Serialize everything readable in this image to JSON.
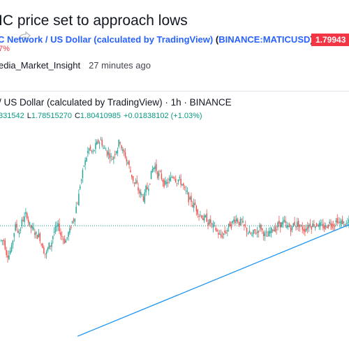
{
  "article": {
    "headline": "IC price set to approach lows",
    "symbol_name": "C Network / US Dollar (calculated by TradingView)",
    "symbol_code": "BINANCE:MATICUSD",
    "price": "1.79943",
    "change": "7%",
    "author": "edia_Market_Insight",
    "published": "27 minutes ago",
    "share_icon": "share-icon"
  },
  "chart": {
    "title": "/ US Dollar (calculated by TradingView) · 1h · BINANCE",
    "ohlc": {
      "open_partial": "331542",
      "low_label": "L",
      "low": "1.78515270",
      "close_label": "C",
      "close": "1.80410985",
      "change": "+0.01838102 (+1.03%)"
    },
    "colors": {
      "up": "#26a69a",
      "down": "#ef5350",
      "trendline": "#2196f3",
      "priceline": "#089981"
    }
  },
  "chart_data": {
    "type": "candlestick",
    "interval": "1h",
    "exchange": "BINANCE",
    "last_close": 1.80410985,
    "close_series": [
      1.77,
      1.74,
      1.75,
      1.8,
      1.79,
      1.82,
      1.83,
      1.8,
      1.79,
      1.78,
      1.76,
      1.74,
      1.76,
      1.79,
      1.8,
      1.78,
      1.77,
      1.79,
      1.82,
      1.86,
      1.91,
      1.95,
      1.98,
      1.97,
      1.99,
      2.0,
      1.98,
      1.97,
      1.96,
      1.98,
      2.0,
      1.97,
      1.95,
      1.92,
      1.9,
      1.88,
      1.87,
      1.89,
      1.92,
      1.94,
      1.92,
      1.91,
      1.9,
      1.91,
      1.92,
      1.91,
      1.9,
      1.88,
      1.86,
      1.85,
      1.84,
      1.83,
      1.82,
      1.81,
      1.8,
      1.79,
      1.78,
      1.79,
      1.8,
      1.81,
      1.82,
      1.81,
      1.8,
      1.79,
      1.78,
      1.79,
      1.8,
      1.79,
      1.78,
      1.79,
      1.8,
      1.81,
      1.81,
      1.8,
      1.8,
      1.81,
      1.81,
      1.8,
      1.8,
      1.81,
      1.81,
      1.81,
      1.8,
      1.8,
      1.81,
      1.81,
      1.82,
      1.81,
      1.81,
      1.81
    ],
    "trendline": {
      "from_index": 20,
      "from_value": 1.55,
      "to_index": 89,
      "to_value": 1.8
    },
    "y_range": [
      1.52,
      2.05
    ]
  }
}
